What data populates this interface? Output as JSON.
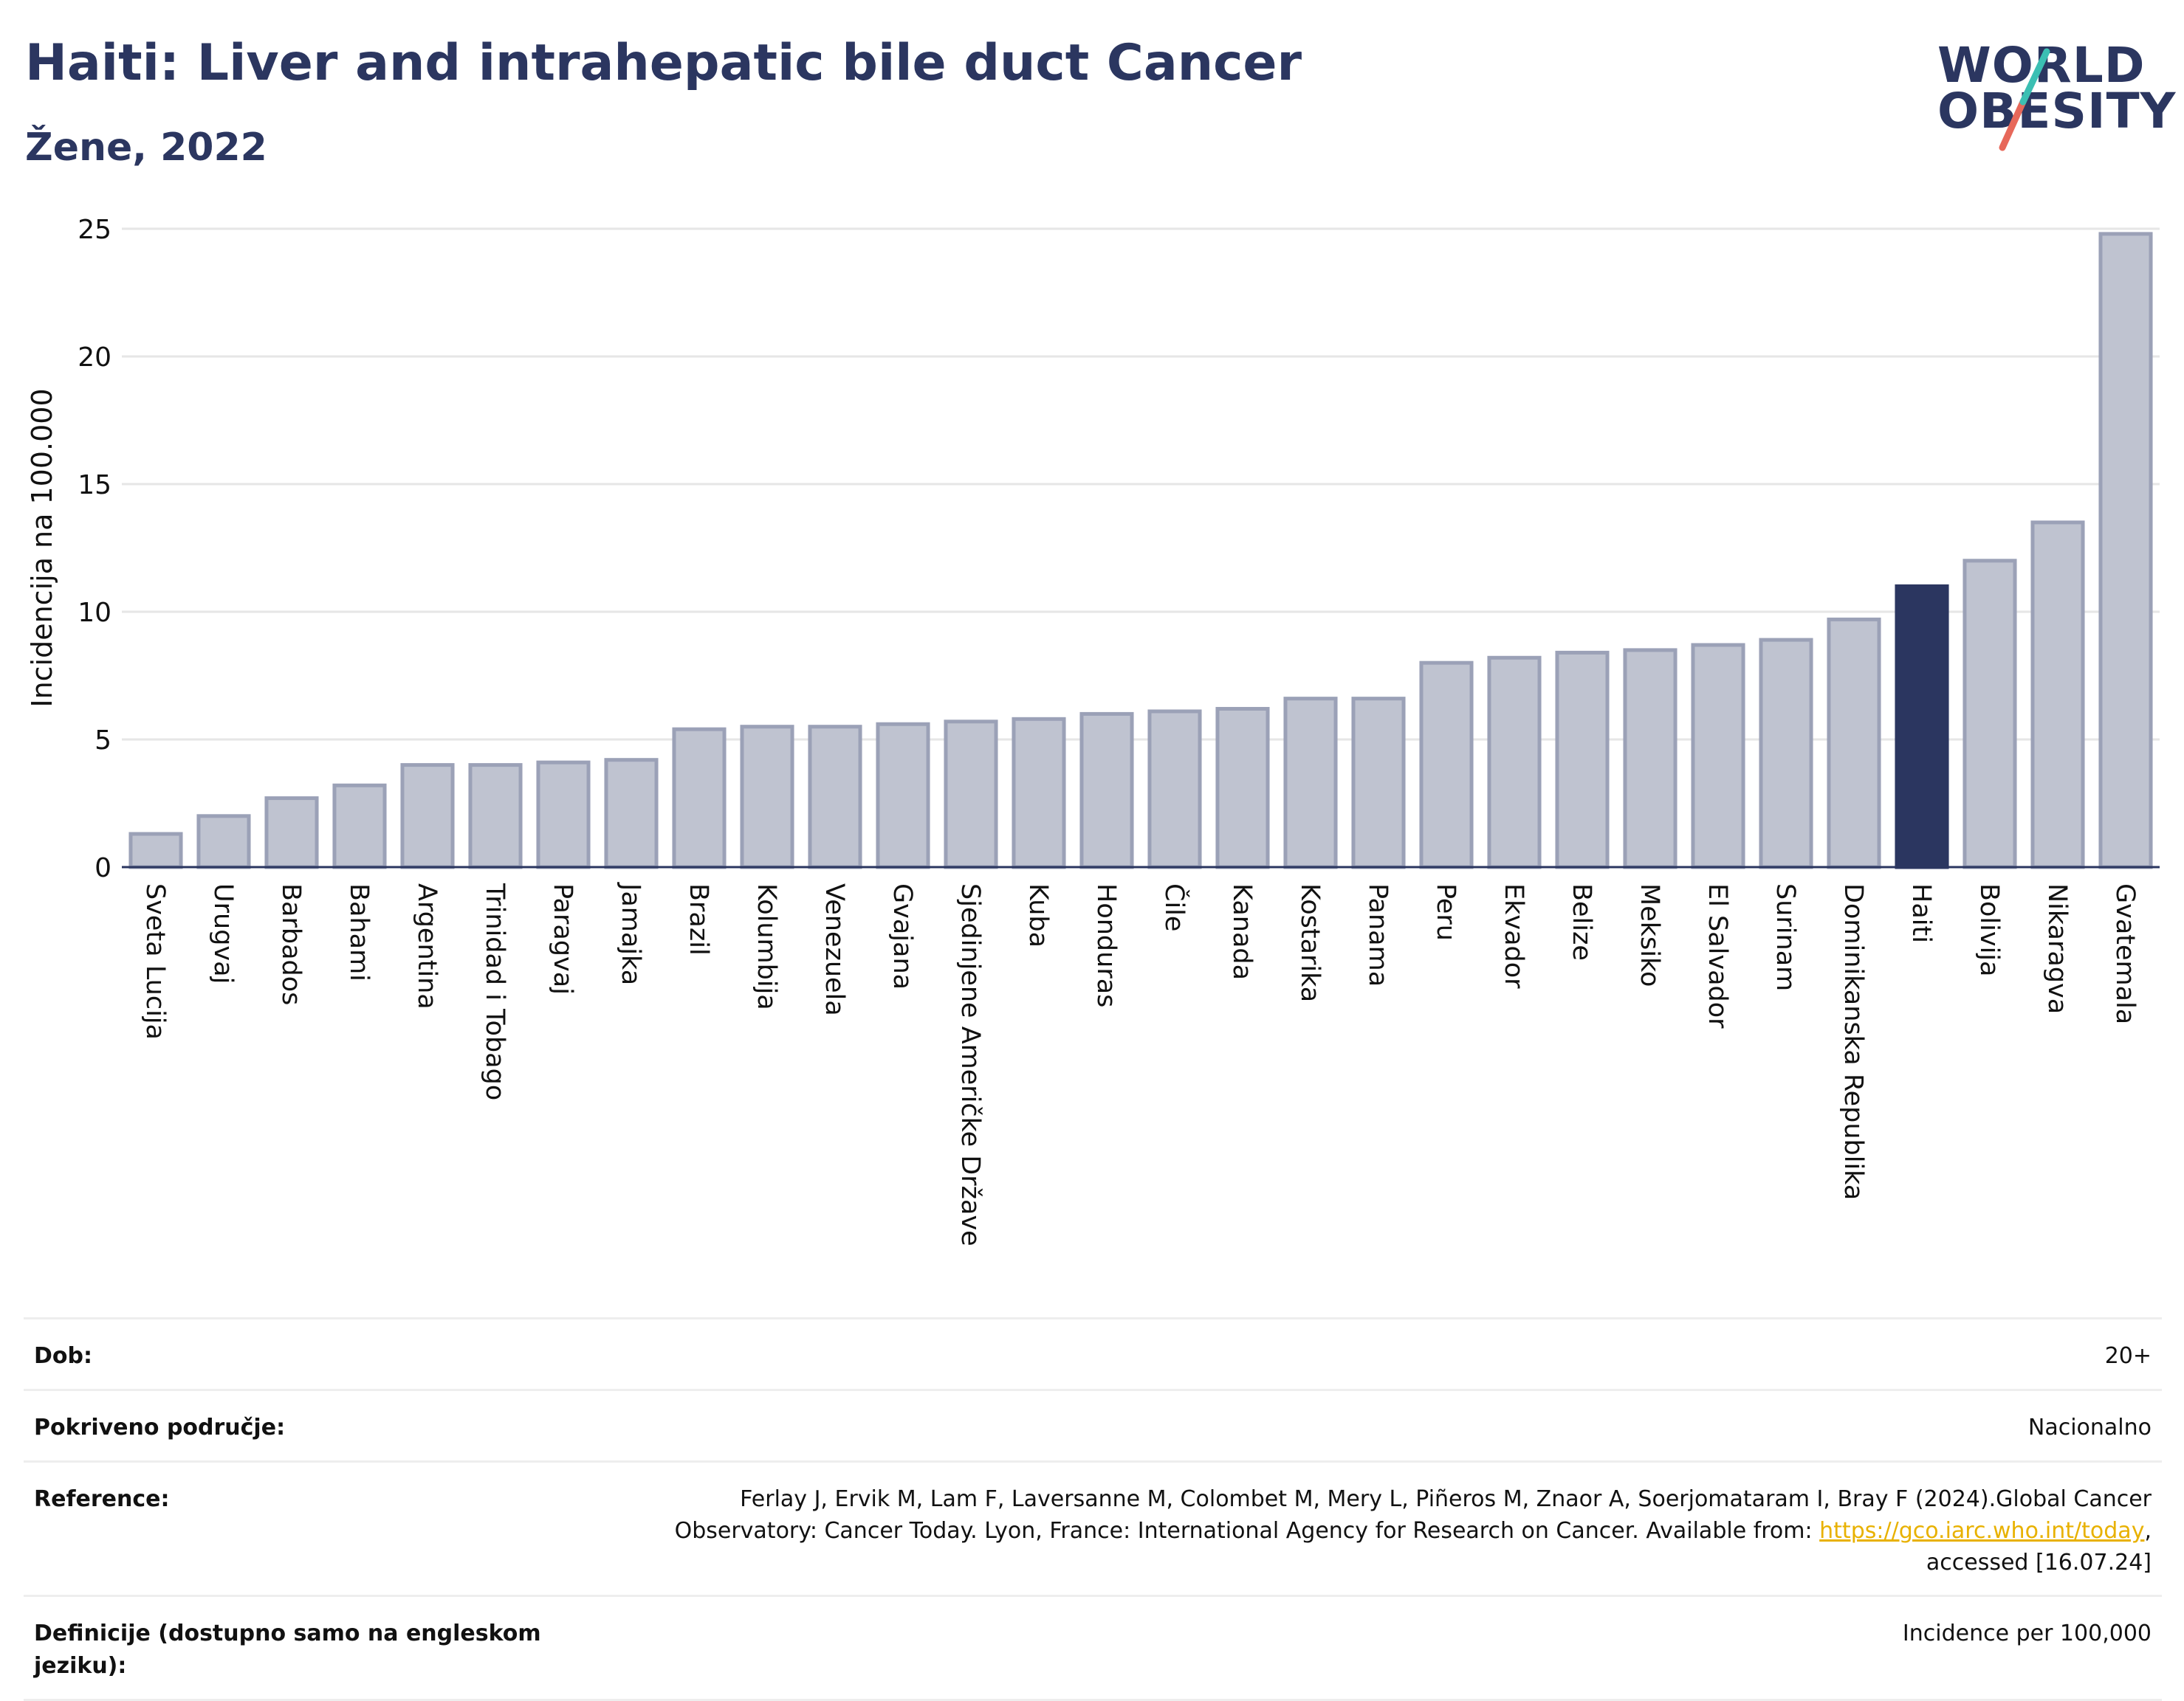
{
  "header": {
    "title": "Haiti: Liver and intrahepatic bile duct Cancer",
    "subtitle": "Žene, 2022"
  },
  "logo": {
    "line1": "WORLD",
    "line2": "OBESITY",
    "colors": {
      "text": "#2b3660",
      "slash_top": "#3bbfb3",
      "slash_bottom": "#e7685a"
    }
  },
  "chart_data": {
    "type": "bar",
    "ylabel": "Incidencija na 100.000",
    "ylim": [
      0,
      25
    ],
    "yticks": [
      0,
      5,
      10,
      15,
      20,
      25
    ],
    "grid": true,
    "highlight": "Haiti",
    "colors": {
      "bar": "#bfc3d0",
      "bar_border": "#9ba1b7",
      "highlight": "#2b3660"
    },
    "categories": [
      "Sveta Lucija",
      "Urugvaj",
      "Barbados",
      "Bahami",
      "Argentina",
      "Trinidad i Tobago",
      "Paragvaj",
      "Jamajka",
      "Brazil",
      "Kolumbija",
      "Venezuela",
      "Gvajana",
      "Sjedinjene Američke Države",
      "Kuba",
      "Honduras",
      "Čile",
      "Kanada",
      "Kostarika",
      "Panama",
      "Peru",
      "Ekvador",
      "Belize",
      "Meksiko",
      "El Salvador",
      "Surinam",
      "Dominikanska Republika",
      "Haiti",
      "Bolivija",
      "Nikaragva",
      "Gvatemala"
    ],
    "values": [
      1.3,
      2.0,
      2.7,
      3.2,
      4.0,
      4.0,
      4.1,
      4.2,
      5.4,
      5.5,
      5.5,
      5.6,
      5.7,
      5.8,
      6.0,
      6.1,
      6.2,
      6.6,
      6.6,
      8.0,
      8.2,
      8.4,
      8.5,
      8.7,
      8.9,
      9.7,
      11.0,
      12.0,
      13.5,
      24.8
    ]
  },
  "meta": {
    "age": {
      "label": "Dob:",
      "value": "20+"
    },
    "coverage": {
      "label": "Pokriveno područje:",
      "value": "Nacionalno"
    },
    "reference": {
      "label": "Reference:",
      "line1": "Ferlay J, Ervik M, Lam F, Laversanne M, Colombet M, Mery L, Piñeros M, Znaor A, Soerjomataram I, Bray F (2024).Global Cancer",
      "line2_pre": "Observatory: Cancer Today. Lyon, France: International Agency for Research on Cancer. Available from: ",
      "link": "https://gco.iarc.who.int/today",
      "line2_post": ",",
      "line3": "accessed [16.07.24]"
    },
    "definitions": {
      "label": "Definicije (dostupno samo na engleskom jeziku):",
      "value": "Incidence per 100,000"
    }
  }
}
